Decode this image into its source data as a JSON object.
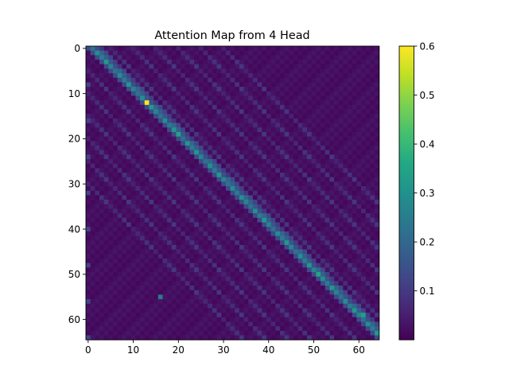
{
  "chart_data": {
    "type": "heatmap",
    "title": "Attention Map from 4 Head",
    "xlabel": "",
    "ylabel": "",
    "size": [
      65,
      65
    ],
    "x_ticks": [
      0,
      10,
      20,
      30,
      40,
      50,
      60
    ],
    "y_ticks": [
      0,
      10,
      20,
      30,
      40,
      50,
      60
    ],
    "colormap": "viridis",
    "vmin": 0.0,
    "vmax": 0.6,
    "colorbar_ticks": [
      0.1,
      0.2,
      0.3,
      0.4,
      0.5,
      0.6
    ],
    "colorbar_tick_labels": [
      "0.1",
      "0.2",
      "0.3",
      "0.4",
      "0.5",
      "0.6"
    ],
    "pattern": {
      "background": 0.01,
      "main_diagonal_offset": 1,
      "main_diagonal_value": 0.3,
      "secondary_offsets": [
        2,
        3
      ],
      "secondary_values": [
        0.18,
        0.12
      ],
      "faint_diagonal_offsets": [
        -5,
        5,
        10,
        15,
        20,
        25,
        30
      ],
      "faint_value": 0.09,
      "column_zero_value": 0.12,
      "peaks": [
        {
          "row": 12,
          "col": 13,
          "value": 0.6
        },
        {
          "row": 19,
          "col": 20,
          "value": 0.35
        },
        {
          "row": 21,
          "col": 22,
          "value": 0.32
        },
        {
          "row": 33,
          "col": 34,
          "value": 0.3
        },
        {
          "row": 36,
          "col": 37,
          "value": 0.3
        },
        {
          "row": 50,
          "col": 51,
          "value": 0.35
        },
        {
          "row": 59,
          "col": 61,
          "value": 0.33
        },
        {
          "row": 55,
          "col": 16,
          "value": 0.25
        }
      ]
    }
  }
}
